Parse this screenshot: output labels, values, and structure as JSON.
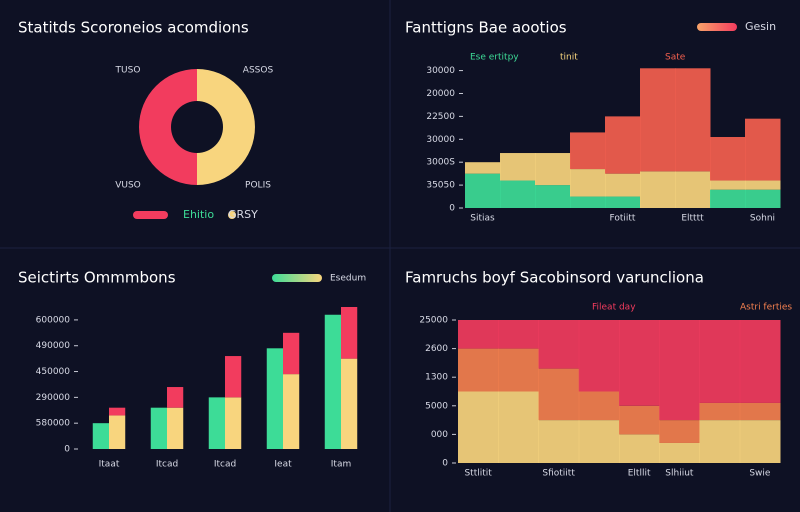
{
  "chart_data": [
    {
      "type": "pie",
      "title": "Statitds Scoroneios acomdions",
      "categories": [
        "Ehitio",
        "GRSY"
      ],
      "values": [
        50,
        50
      ],
      "colors": [
        "#f23c5e",
        "#f8d57e"
      ],
      "annotations": [
        "TUSO",
        "ASSOS",
        "VUSO",
        "POLIS"
      ]
    },
    {
      "type": "step",
      "title": "Fanttigns Bae aootios",
      "legend_label": "Gesin",
      "categories": [
        "Sitias",
        null,
        null,
        null,
        "Fotiitt",
        null,
        "Eltttt",
        null,
        "Sohni"
      ],
      "series": [
        {
          "name": "Ese ertitpy",
          "color": "#3ddc97",
          "values": [
            1.5,
            1.2,
            1.0,
            0.5,
            0.5,
            0,
            0,
            0.8,
            0.8
          ]
        },
        {
          "name": "tinit",
          "color": "#f8d57e",
          "values": [
            0.5,
            1.2,
            1.4,
            1.2,
            1.0,
            1.6,
            1.6,
            0.4,
            0.4
          ]
        },
        {
          "name": "Sate",
          "color": "#f4604f",
          "values": [
            0,
            0,
            0,
            1.6,
            2.5,
            4.5,
            4.5,
            1.9,
            2.7
          ]
        }
      ],
      "ylim": [
        0,
        6.2
      ],
      "yticks": [
        0,
        {
          "value": 1,
          "label": "35050"
        },
        {
          "value": 2,
          "label": "3000S"
        },
        {
          "value": 3,
          "label": "30000"
        },
        {
          "value": 4,
          "label": "22500"
        },
        {
          "value": 5,
          "label": "20000"
        },
        {
          "value": 6,
          "label": "30000"
        }
      ]
    },
    {
      "type": "bar",
      "title": "Seictirts Ommmbons",
      "legend_label": "Esedum",
      "categories": [
        "Itaat",
        "Itcad",
        "Itcad",
        "Ieat",
        "Itam"
      ],
      "series": [
        {
          "color": "#3ddc97",
          "stack": "a",
          "values": [
            1.0,
            1.6,
            2.0,
            3.9,
            5.2
          ]
        },
        {
          "color": "#f8d57e",
          "stack": "b",
          "values": [
            1.3,
            1.6,
            2.0,
            2.9,
            3.5
          ]
        },
        {
          "color": "#f23c5e",
          "stack": "b",
          "values": [
            0.3,
            0.8,
            1.6,
            1.6,
            2.0
          ]
        }
      ],
      "ylim": [
        0,
        5.5
      ],
      "yticks": [
        0,
        {
          "value": 1,
          "label": "580000"
        },
        {
          "value": 2,
          "label": "290000"
        },
        {
          "value": 3,
          "label": "450000"
        },
        {
          "value": 4,
          "label": "490000"
        },
        {
          "value": 5,
          "label": "600000"
        }
      ]
    },
    {
      "type": "step",
      "title": "Famruchs boyf Sacobinsord varuncliona",
      "categories": [
        "Sttlitit",
        null,
        "Sfiotiitt",
        null,
        "Eltllit",
        "Slhiiut",
        null,
        "Swie"
      ],
      "series": [
        {
          "color": "#f8d57e",
          "values": [
            2.5,
            2.5,
            1.5,
            1.5,
            1.0,
            0.7,
            1.5,
            1.5
          ]
        },
        {
          "name": "Astri ferties",
          "color": "#f4804f",
          "values": [
            1.5,
            1.5,
            1.8,
            1.0,
            1.0,
            0.8,
            0.6,
            0.6
          ]
        },
        {
          "name": "Fileat day",
          "color": "#f23c5e",
          "values": [
            1.0,
            1.0,
            1.7,
            2.5,
            3.0,
            3.5,
            2.9,
            2.9
          ]
        }
      ],
      "ylim": [
        0,
        5
      ],
      "yticks": [
        0,
        {
          "value": 1,
          "label": "000"
        },
        {
          "value": 2,
          "label": "5000"
        },
        {
          "value": 3,
          "label": "1300"
        },
        {
          "value": 4,
          "label": "2600"
        },
        {
          "value": 5,
          "label": "25000"
        }
      ]
    }
  ]
}
